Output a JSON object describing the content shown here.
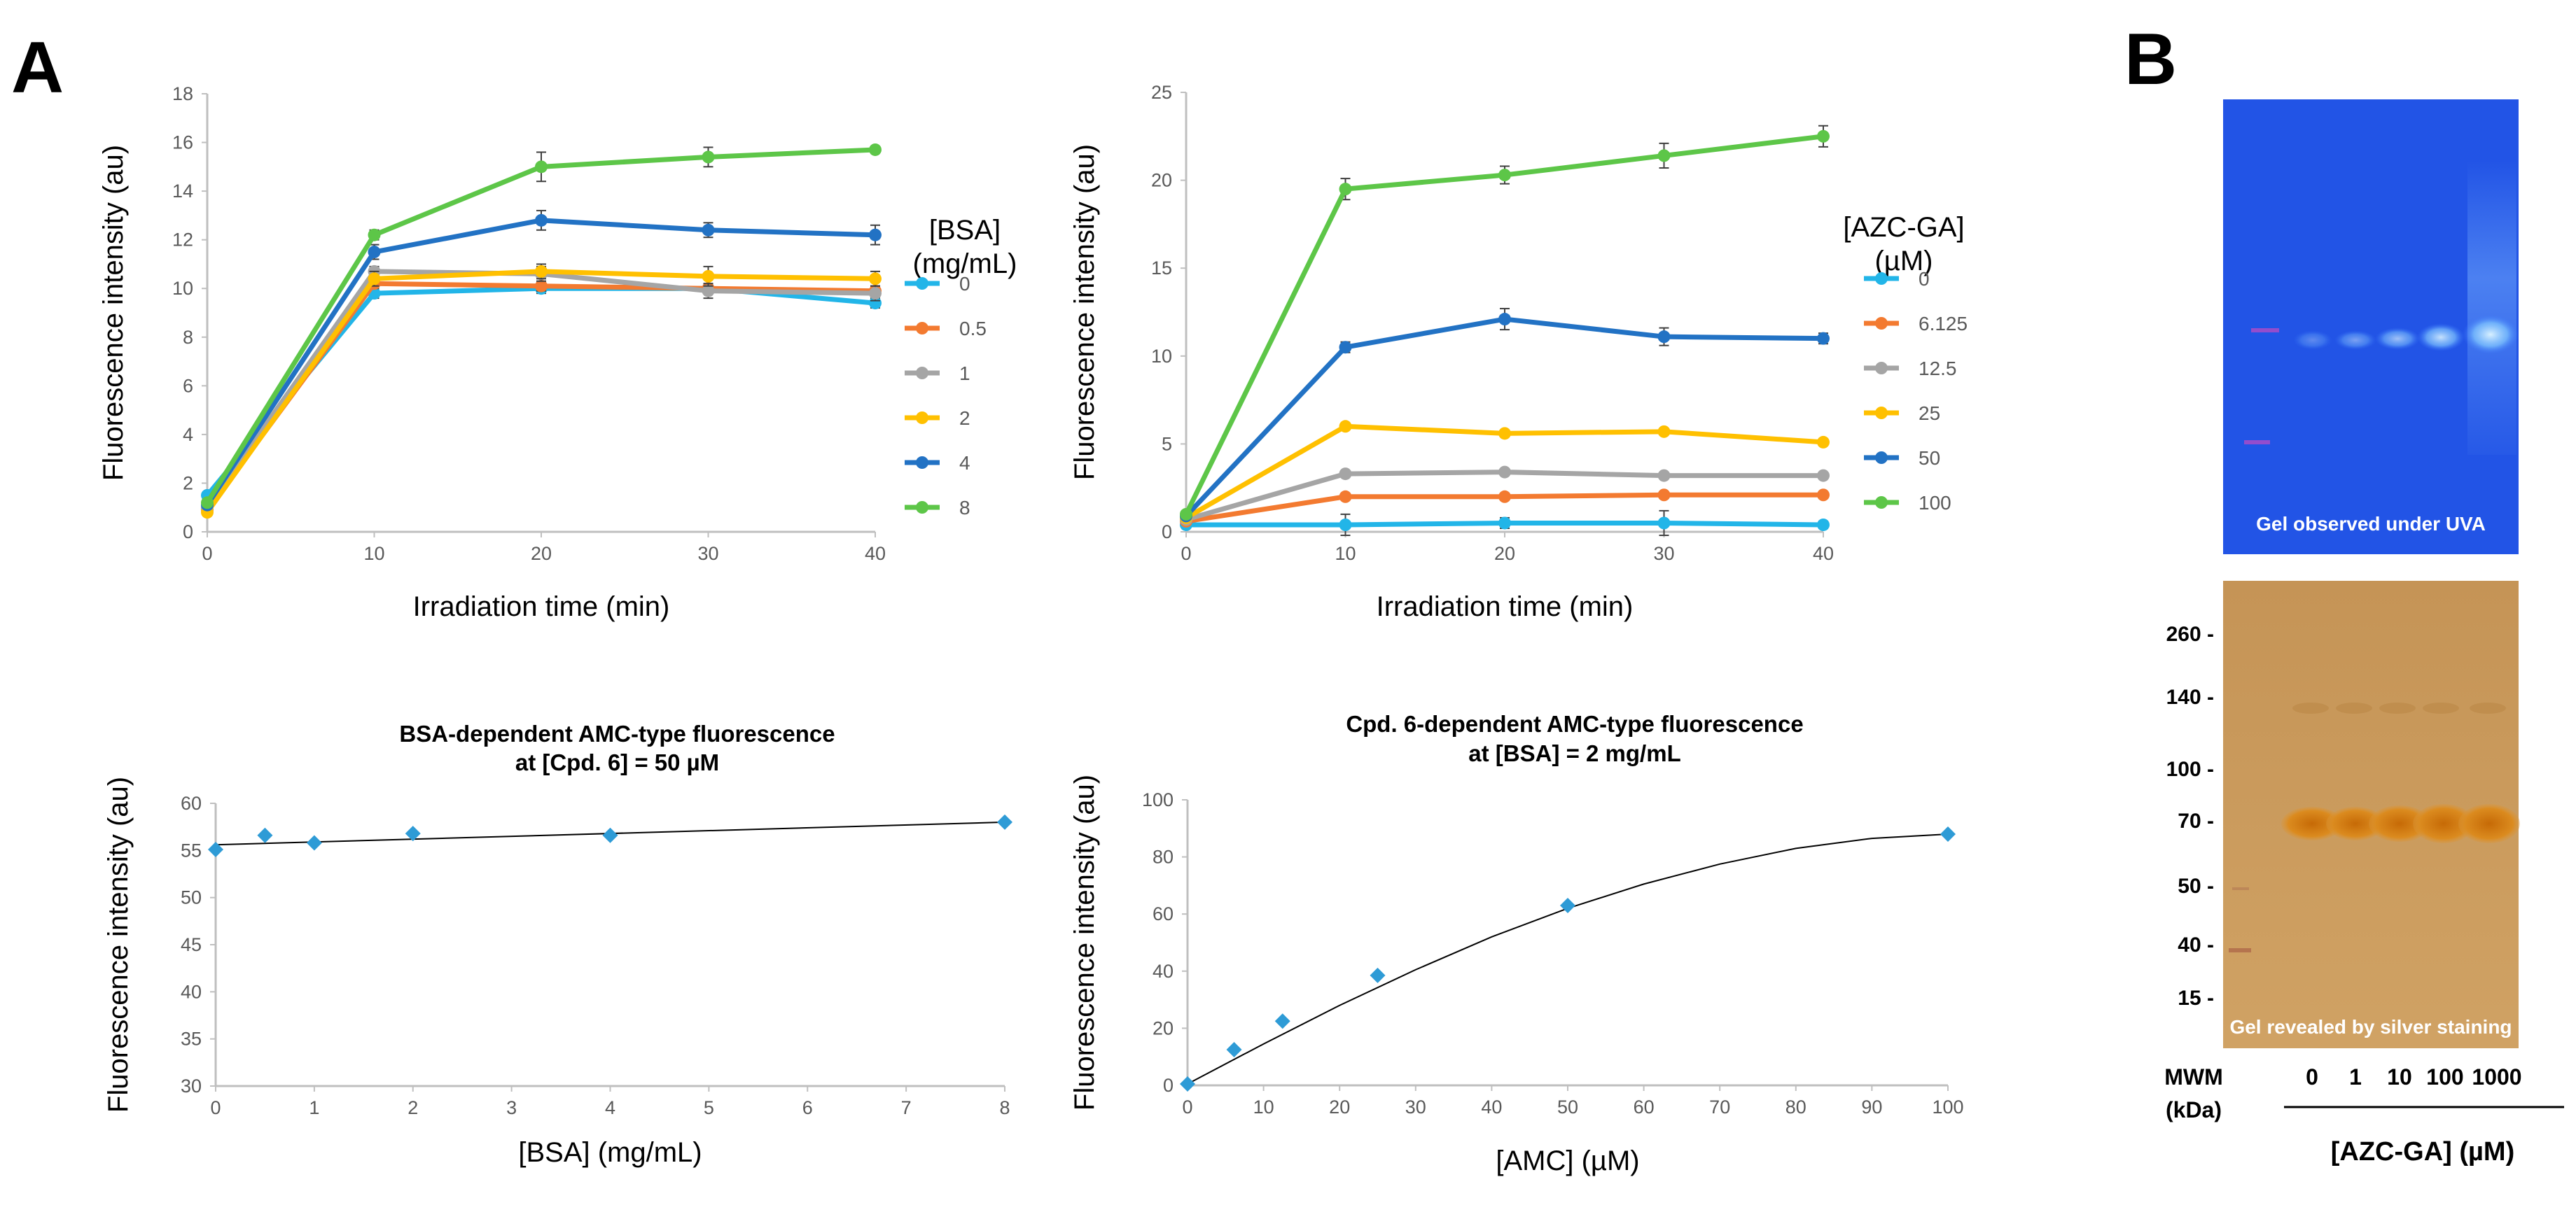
{
  "panels": {
    "a": "A",
    "b": "B"
  },
  "chart_data": [
    {
      "id": "bsa_time",
      "type": "line",
      "xlabel": "Irradiation time (min)",
      "ylabel": "Fluorescence intensity (au)",
      "xlim": [
        0,
        40
      ],
      "ylim": [
        0,
        18
      ],
      "xticks": [
        0,
        10,
        20,
        30,
        40
      ],
      "yticks": [
        0,
        2,
        4,
        6,
        8,
        10,
        12,
        14,
        16,
        18
      ],
      "x": [
        0,
        10,
        20,
        30,
        40
      ],
      "legend_title": [
        "[BSA]",
        "(mg/mL)"
      ],
      "series": [
        {
          "name": "0",
          "color": "#22B5E8",
          "values": [
            1.5,
            9.8,
            10.0,
            10.0,
            9.4
          ],
          "err": [
            0.1,
            0.2,
            0.2,
            0.2,
            0.2
          ]
        },
        {
          "name": "0.5",
          "color": "#F37A30",
          "values": [
            0.9,
            10.2,
            10.1,
            10.0,
            9.9
          ],
          "err": [
            0.1,
            0.2,
            0.2,
            0.2,
            0.2
          ]
        },
        {
          "name": "1",
          "color": "#A5A5A5",
          "values": [
            1.0,
            10.7,
            10.6,
            9.9,
            9.8
          ],
          "err": [
            0.1,
            0.2,
            0.3,
            0.3,
            0.3
          ]
        },
        {
          "name": "2",
          "color": "#FFC000",
          "values": [
            0.8,
            10.4,
            10.7,
            10.5,
            10.4
          ],
          "err": [
            0.1,
            0.3,
            0.3,
            0.4,
            0.3
          ]
        },
        {
          "name": "4",
          "color": "#2272C4",
          "values": [
            1.1,
            11.5,
            12.8,
            12.4,
            12.2
          ],
          "err": [
            0.1,
            0.3,
            0.4,
            0.3,
            0.4
          ]
        },
        {
          "name": "8",
          "color": "#5DC648",
          "values": [
            1.2,
            12.2,
            15.0,
            15.4,
            15.7
          ],
          "err": [
            0.1,
            0.2,
            0.6,
            0.4,
            0.1
          ]
        }
      ]
    },
    {
      "id": "azc_time",
      "type": "line",
      "xlabel": "Irradiation time (min)",
      "ylabel": "Fluorescence intensity (au)",
      "xlim": [
        0,
        40
      ],
      "ylim": [
        0,
        25
      ],
      "xticks": [
        0,
        10,
        20,
        30,
        40
      ],
      "yticks": [
        0,
        5,
        10,
        15,
        20,
        25
      ],
      "x": [
        0,
        10,
        20,
        30,
        40
      ],
      "legend_title": [
        "[AZC-GA]",
        "(µM)"
      ],
      "series": [
        {
          "name": "0",
          "color": "#22B5E8",
          "values": [
            0.4,
            0.4,
            0.5,
            0.5,
            0.4
          ],
          "err": [
            0.1,
            0.6,
            0.3,
            0.7,
            0.2
          ]
        },
        {
          "name": "6.125",
          "color": "#F37A30",
          "values": [
            0.6,
            2.0,
            2.0,
            2.1,
            2.1
          ],
          "err": [
            0.1,
            0.1,
            0.1,
            0.1,
            0.1
          ]
        },
        {
          "name": "12.5",
          "color": "#A5A5A5",
          "values": [
            0.7,
            3.3,
            3.4,
            3.2,
            3.2
          ],
          "err": [
            0.1,
            0.1,
            0.1,
            0.1,
            0.1
          ]
        },
        {
          "name": "25",
          "color": "#FFC000",
          "values": [
            0.8,
            6.0,
            5.6,
            5.7,
            5.1
          ],
          "err": [
            0.1,
            0.1,
            0.1,
            0.1,
            0.1
          ]
        },
        {
          "name": "50",
          "color": "#2272C4",
          "values": [
            0.9,
            10.5,
            12.1,
            11.1,
            11.0
          ],
          "err": [
            0.1,
            0.3,
            0.6,
            0.5,
            0.3
          ]
        },
        {
          "name": "100",
          "color": "#5DC648",
          "values": [
            1.0,
            19.5,
            20.3,
            21.4,
            22.5
          ],
          "err": [
            0.1,
            0.6,
            0.5,
            0.7,
            0.6
          ]
        }
      ]
    },
    {
      "id": "bsa_dependent",
      "type": "scatter",
      "title": [
        "BSA-dependent AMC-type fluorescence",
        "at [Cpd. 6] = 50 µM"
      ],
      "xlabel": "[BSA] (mg/mL)",
      "ylabel": "Fluorescence intensity (au)",
      "xlim": [
        0,
        8
      ],
      "ylim": [
        30,
        60
      ],
      "xticks": [
        0,
        1,
        2,
        3,
        4,
        5,
        6,
        7,
        8
      ],
      "yticks": [
        30,
        35,
        40,
        45,
        50,
        55,
        60
      ],
      "x": [
        0,
        0.5,
        1,
        2,
        4,
        8
      ],
      "y": [
        55.1,
        56.6,
        55.8,
        56.8,
        56.6,
        58.0
      ],
      "marker_color": "#2E9BD6",
      "trendline": {
        "type": "linear",
        "x": [
          0,
          8
        ],
        "y": [
          55.6,
          58.0
        ]
      }
    },
    {
      "id": "cpd6_dependent",
      "type": "scatter",
      "title": [
        "Cpd. 6-dependent AMC-type fluorescence",
        "at [BSA] = 2 mg/mL"
      ],
      "xlabel": "[AMC] (µM)",
      "ylabel": "Fluorescence intensity (au)",
      "xlim": [
        0,
        100
      ],
      "ylim": [
        0,
        100
      ],
      "xticks": [
        0,
        10,
        20,
        30,
        40,
        50,
        60,
        70,
        80,
        90,
        100
      ],
      "yticks": [
        0,
        20,
        40,
        60,
        80,
        100
      ],
      "x": [
        0,
        6.125,
        12.5,
        25,
        50,
        100
      ],
      "y": [
        0.5,
        12.5,
        22.5,
        38.5,
        63.0,
        88.0
      ],
      "marker_color": "#2E9BD6",
      "trendline": {
        "type": "polynomial",
        "x": [
          0,
          10,
          20,
          30,
          40,
          50,
          60,
          70,
          80,
          90,
          100
        ],
        "y": [
          0.5,
          14.5,
          28,
          40.5,
          52,
          62,
          70.5,
          77.5,
          83,
          86.5,
          88
        ]
      }
    }
  ],
  "gel": {
    "uva_caption": "Gel observed under UVA",
    "silver_caption": "Gel revealed by silver staining",
    "mw_markers": [
      "260 -",
      "140 -",
      "100 -",
      "70 -",
      "50 -",
      "40 -",
      "15 -"
    ],
    "mw_unit": [
      "MWM",
      "(kDa)"
    ],
    "lanes": [
      "0",
      "1",
      "10",
      "100",
      "1000"
    ],
    "lane_axis_title": "[AZC-GA] (µM)",
    "uva_colors": {
      "bg": "#1E50E6",
      "band": "#9CD3FF"
    },
    "silver_colors": {
      "bg": "#C99A57",
      "band": "#D98416"
    }
  }
}
